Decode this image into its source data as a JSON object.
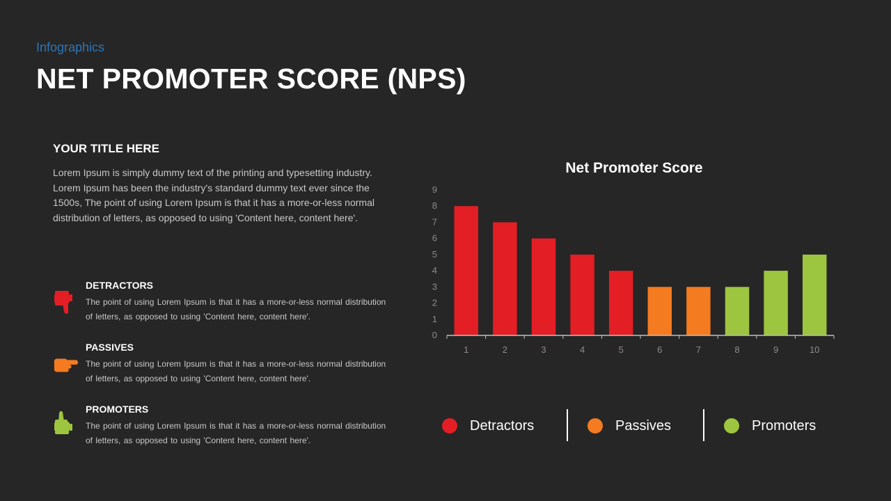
{
  "header": {
    "subtitle": "Infographics",
    "title": "NET PROMOTER SCORE (NPS)"
  },
  "left": {
    "section_title": "YOUR TITLE HERE",
    "intro": "Lorem Ipsum is simply dummy text of the printing and typesetting industry. Lorem Ipsum has been the industry's standard dummy text ever since the 1500s, The point of using Lorem Ipsum is that it has a more-or-less normal distribution of letters, as opposed to using 'Content here, content here'.",
    "categories": [
      {
        "title": "DETRACTORS",
        "icon": "thumbs-down-icon",
        "color": "#e31e24",
        "text": "The point of using Lorem Ipsum is that it has a more-or-less  normal distribution of letters, as opposed to using 'Content here, content here'."
      },
      {
        "title": "PASSIVES",
        "icon": "pointing-hand-icon",
        "color": "#f47b20",
        "text": "The point of using Lorem Ipsum is that it has a more-or-less  normal distribution of letters, as opposed to using 'Content here, content here'."
      },
      {
        "title": "PROMOTERS",
        "icon": "thumbs-up-icon",
        "color": "#9dc540",
        "text": "The point of using Lorem Ipsum is that it has a more-or-less  normal distribution of letters, as opposed to using 'Content here, content here'."
      }
    ]
  },
  "legend": [
    {
      "label": "Detractors",
      "color": "#e31e24"
    },
    {
      "label": "Passives",
      "color": "#f47b20"
    },
    {
      "label": "Promoters",
      "color": "#9dc540"
    }
  ],
  "chart_data": {
    "type": "bar",
    "title": "Net Promoter Score",
    "categories": [
      "1",
      "2",
      "3",
      "4",
      "5",
      "6",
      "7",
      "8",
      "9",
      "10"
    ],
    "values": [
      8,
      7,
      6,
      5,
      4,
      3,
      3,
      3,
      4,
      5
    ],
    "bar_colors": [
      "#e31e24",
      "#e31e24",
      "#e31e24",
      "#e31e24",
      "#e31e24",
      "#f47b20",
      "#f47b20",
      "#9dc540",
      "#9dc540",
      "#9dc540"
    ],
    "ylim": [
      0,
      9
    ],
    "yticks": [
      0,
      1,
      2,
      3,
      4,
      5,
      6,
      7,
      8,
      9
    ],
    "grid": false,
    "legend_position": "bottom"
  }
}
